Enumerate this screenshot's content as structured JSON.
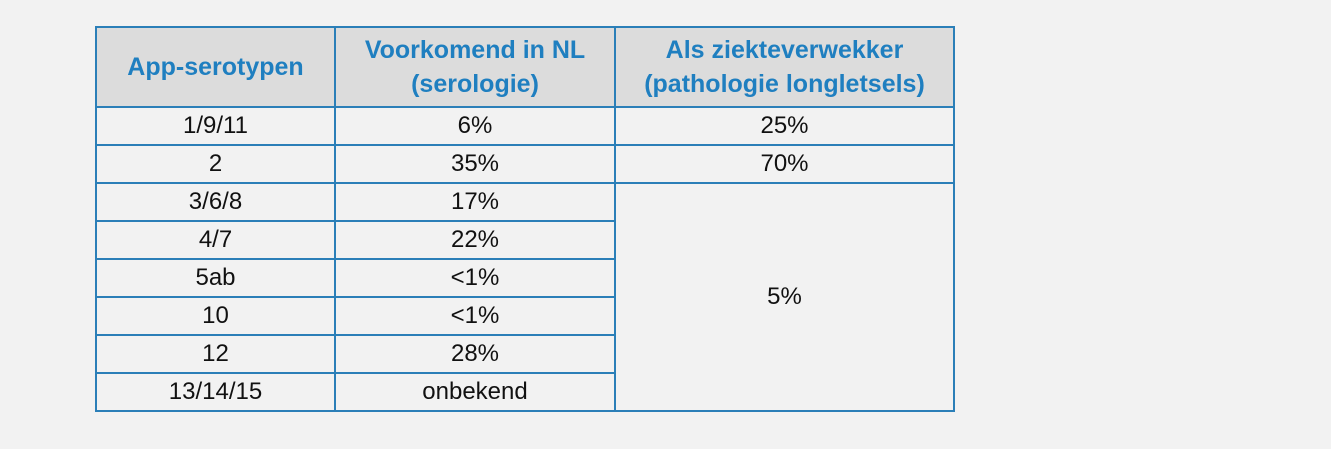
{
  "table": {
    "headers": [
      [
        "App-serotypen"
      ],
      [
        "Voorkomend in NL",
        "(serologie)"
      ],
      [
        "Als ziekteverwekker",
        "(pathologie longletsels)"
      ]
    ],
    "rows": [
      {
        "serotype": "1/9/11",
        "serology": "6%",
        "pathology": "25%"
      },
      {
        "serotype": "2",
        "serology": "35%",
        "pathology": "70%"
      },
      {
        "serotype": "3/6/8",
        "serology": "17%"
      },
      {
        "serotype": "4/7",
        "serology": "22%"
      },
      {
        "serotype": "5ab",
        "serology": "<1%"
      },
      {
        "serotype": "10",
        "serology": "<1%"
      },
      {
        "serotype": "12",
        "serology": "28%"
      },
      {
        "serotype": "13/14/15",
        "serology": "onbekend"
      }
    ],
    "merged_pathology": "5%"
  },
  "colors": {
    "header_text": "#1f7fc0",
    "header_bg": "#dcdcdc",
    "border": "#2b7fb8",
    "background": "#f2f2f2"
  }
}
